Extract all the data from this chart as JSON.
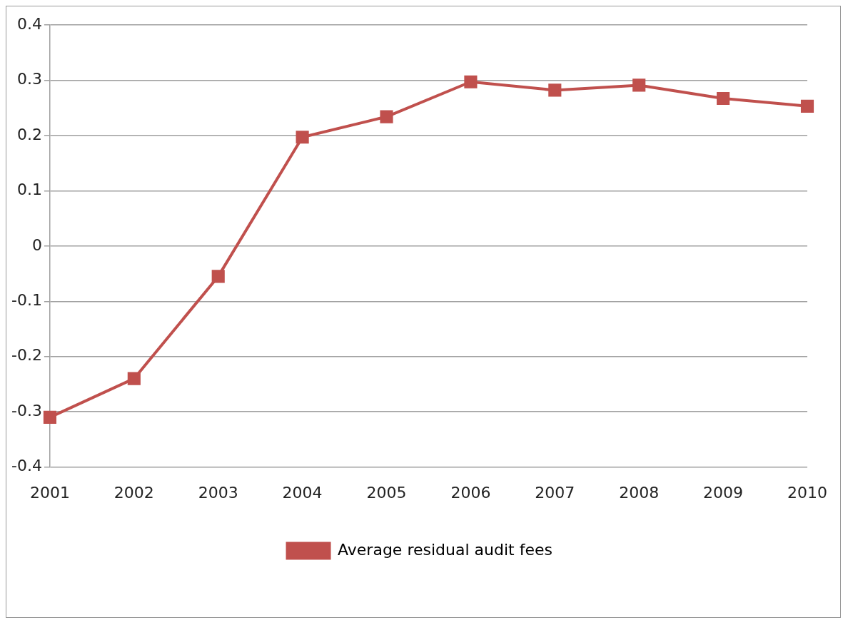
{
  "chart_data": {
    "type": "line",
    "categories": [
      "2001",
      "2002",
      "2003",
      "2004",
      "2005",
      "2006",
      "2007",
      "2008",
      "2009",
      "2010"
    ],
    "series": [
      {
        "name": "Average residual audit fees",
        "color": "#c0504d",
        "values": [
          -0.31,
          -0.24,
          -0.055,
          0.197,
          0.234,
          0.297,
          0.282,
          0.291,
          0.267,
          0.253
        ]
      }
    ],
    "ylim": [
      -0.4,
      0.4
    ],
    "yticks": [
      -0.4,
      -0.3,
      -0.2,
      -0.1,
      0,
      0.1,
      0.2,
      0.3,
      0.4
    ],
    "grid": "y",
    "legend": "bottom",
    "marker": "square",
    "line_style": "solid"
  }
}
